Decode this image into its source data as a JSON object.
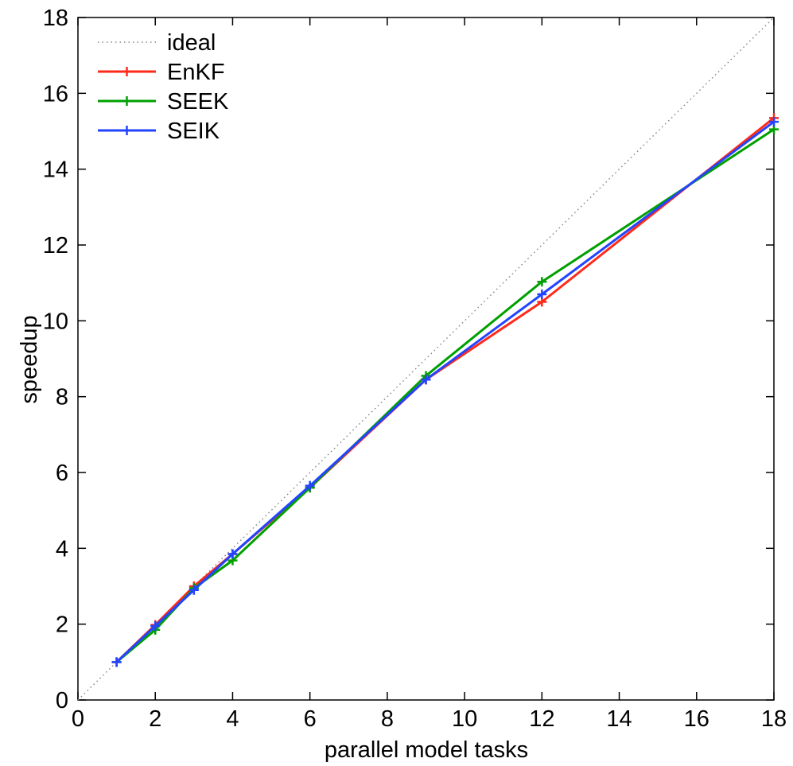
{
  "chart_data": {
    "type": "line",
    "title": "",
    "xlabel": "parallel model tasks",
    "ylabel": "speedup",
    "xlim": [
      0,
      18
    ],
    "ylim": [
      0,
      18
    ],
    "xticks": [
      0,
      2,
      4,
      6,
      8,
      10,
      12,
      14,
      16,
      18
    ],
    "yticks": [
      0,
      2,
      4,
      6,
      8,
      10,
      12,
      14,
      16,
      18
    ],
    "xtick_labels": [
      "0",
      "2",
      "4",
      "6",
      "8",
      "10",
      "12",
      "14",
      "16",
      "18"
    ],
    "ytick_labels": [
      "0",
      "2",
      "4",
      "6",
      "8",
      "10",
      "12",
      "14",
      "16",
      "18"
    ],
    "grid": false,
    "legend_position": "top-left",
    "series": [
      {
        "name": "ideal",
        "color": "#888888",
        "style": "dotted",
        "marker": "none",
        "x": [
          0,
          18
        ],
        "y": [
          0,
          18
        ]
      },
      {
        "name": "EnKF",
        "color": "#ff2a1a",
        "style": "solid",
        "marker": "plus",
        "x": [
          1,
          2,
          3,
          4,
          6,
          9,
          12,
          18
        ],
        "y": [
          1.0,
          1.98,
          3.0,
          3.85,
          5.6,
          8.45,
          10.5,
          15.35
        ]
      },
      {
        "name": "SEEK",
        "color": "#00a000",
        "style": "solid",
        "marker": "plus",
        "x": [
          1,
          2,
          3,
          4,
          6,
          9,
          12,
          18
        ],
        "y": [
          1.0,
          1.85,
          2.95,
          3.68,
          5.6,
          8.55,
          11.03,
          15.05
        ]
      },
      {
        "name": "SEIK",
        "color": "#2244ff",
        "style": "solid",
        "marker": "plus",
        "x": [
          1,
          2,
          3,
          4,
          6,
          9,
          12,
          18
        ],
        "y": [
          1.0,
          1.95,
          2.9,
          3.85,
          5.65,
          8.45,
          10.7,
          15.25
        ]
      }
    ]
  }
}
